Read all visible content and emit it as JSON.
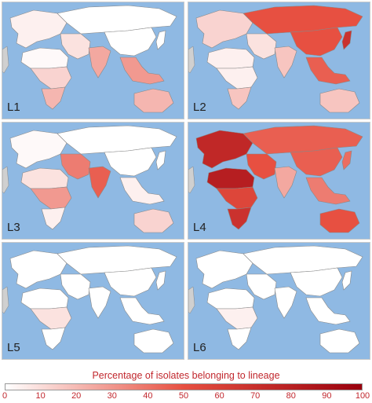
{
  "panels": [
    {
      "label": "L1",
      "regions": {
        "europe": 0.05,
        "russia": 0.0,
        "china": 0.0,
        "india": 0.3,
        "seasia": 0.35,
        "africa_n": 0.02,
        "africa_c": 0.15,
        "africa_s": 0.25,
        "mideast": 0.1,
        "australia": 0.25,
        "japan": 0.0
      }
    },
    {
      "label": "L2",
      "regions": {
        "europe": 0.15,
        "russia": 0.6,
        "china": 0.6,
        "india": 0.2,
        "seasia": 0.55,
        "africa_n": 0.05,
        "africa_c": 0.05,
        "africa_s": 0.2,
        "mideast": 0.1,
        "australia": 0.2,
        "japan": 0.75
      }
    },
    {
      "label": "L3",
      "regions": {
        "europe": 0.02,
        "russia": 0.0,
        "china": 0.0,
        "india": 0.55,
        "seasia": 0.05,
        "africa_n": 0.1,
        "africa_c": 0.35,
        "africa_s": 0.05,
        "mideast": 0.45,
        "australia": 0.15,
        "japan": 0.0
      }
    },
    {
      "label": "L4",
      "regions": {
        "europe": 0.8,
        "russia": 0.55,
        "china": 0.55,
        "india": 0.3,
        "seasia": 0.45,
        "africa_n": 0.85,
        "africa_c": 0.65,
        "africa_s": 0.75,
        "mideast": 0.6,
        "australia": 0.6,
        "japan": 0.5
      }
    },
    {
      "label": "L5",
      "regions": {
        "europe": 0.0,
        "russia": 0.0,
        "china": 0.0,
        "india": 0.0,
        "seasia": 0.0,
        "africa_n": 0.0,
        "africa_c": 0.1,
        "africa_s": 0.0,
        "mideast": 0.0,
        "australia": 0.0,
        "japan": 0.0
      }
    },
    {
      "label": "L6",
      "regions": {
        "europe": 0.0,
        "russia": 0.0,
        "china": 0.0,
        "india": 0.0,
        "seasia": 0.0,
        "africa_n": 0.0,
        "africa_c": 0.05,
        "africa_s": 0.0,
        "mideast": 0.0,
        "australia": 0.0,
        "japan": 0.0
      }
    }
  ],
  "legend": {
    "title": "Percentage of isolates belonging to lineage",
    "ticks": [
      "0",
      "10",
      "20",
      "30",
      "40",
      "50",
      "60",
      "70",
      "80",
      "90",
      "100"
    ],
    "color_low": "#ffffff",
    "color_high": "#99000d"
  },
  "colors": {
    "ocean": "#8fb9e3",
    "nodata": "#d0d0d0",
    "border": "#888888"
  }
}
